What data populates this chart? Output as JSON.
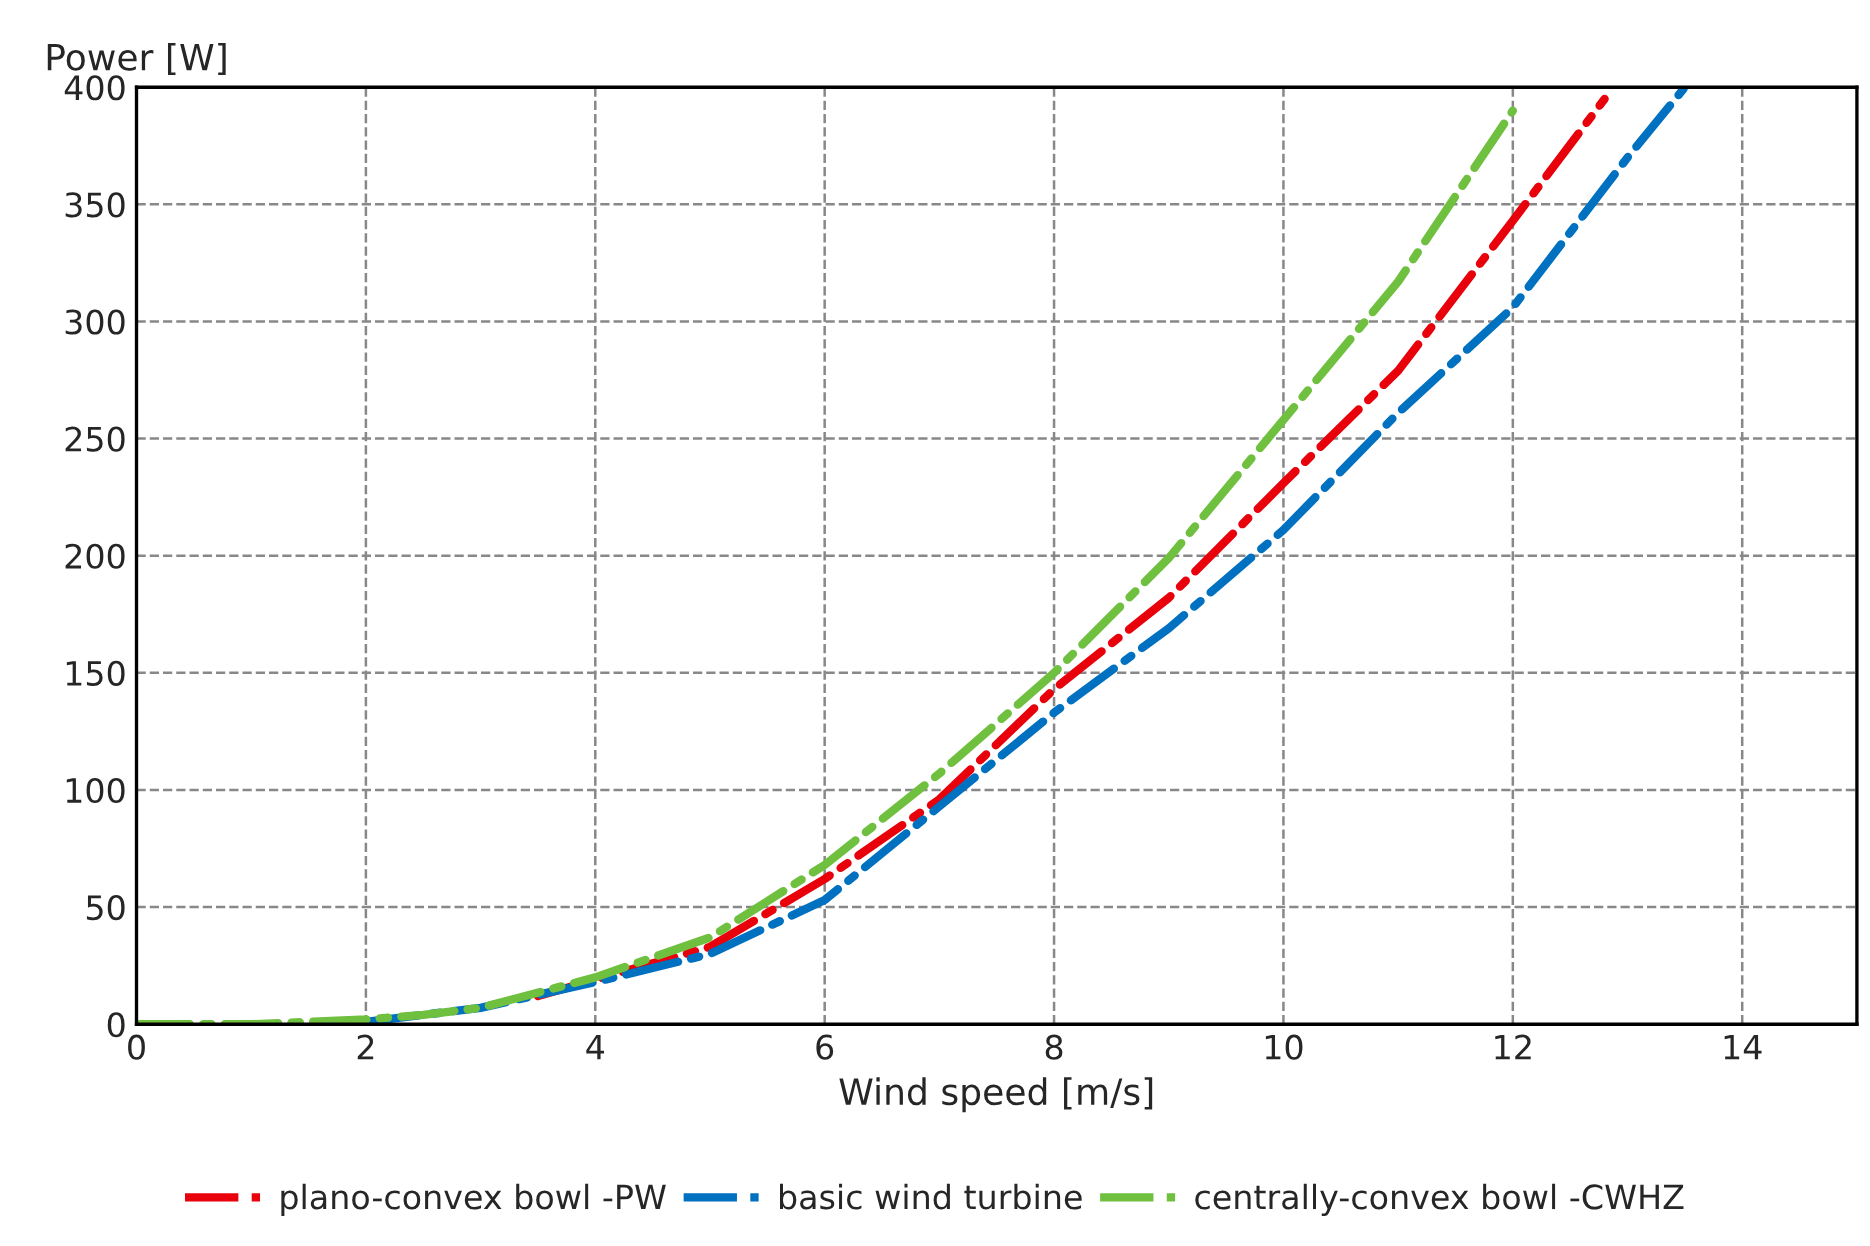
{
  "chart_data": {
    "type": "line",
    "xlabel": "Wind speed [m/s]",
    "ylabel": "Power [W]",
    "xlim": [
      0,
      15
    ],
    "xticks": [
      0,
      2,
      4,
      6,
      8,
      10,
      12,
      14
    ],
    "ylim": [
      0,
      400
    ],
    "yticks": [
      0,
      50,
      100,
      150,
      200,
      250,
      300,
      350,
      400
    ],
    "grid": true,
    "legend": "bottom",
    "line_style": "dashdot",
    "marker": "none",
    "series": [
      {
        "name": "plano-convex bowl -PW",
        "color": "#e8000b",
        "x": [
          3.5,
          4,
          5,
          6,
          7,
          8,
          9,
          10,
          11,
          12,
          12.8
        ],
        "values": [
          12,
          19,
          33,
          62,
          96,
          143,
          182,
          231,
          279,
          343,
          395
        ]
      },
      {
        "name": "basic wind turbine",
        "color": "#0070c0",
        "x": [
          2,
          2.5,
          3,
          4,
          5,
          6,
          7,
          8,
          9,
          10,
          11,
          12,
          13,
          13.5
        ],
        "values": [
          1,
          4,
          7,
          18,
          30,
          53,
          93,
          133,
          169,
          211,
          261,
          306,
          370,
          400
        ]
      },
      {
        "name": "centrally-convex bowl -CWHZ",
        "color": "#70c040",
        "x": [
          0,
          1,
          2,
          2.5,
          3,
          4,
          5,
          6,
          7,
          8,
          9,
          10,
          11,
          12
        ],
        "values": [
          0,
          0,
          2,
          4,
          7,
          20,
          37,
          68,
          107,
          150,
          199,
          258,
          317,
          390
        ]
      }
    ]
  }
}
